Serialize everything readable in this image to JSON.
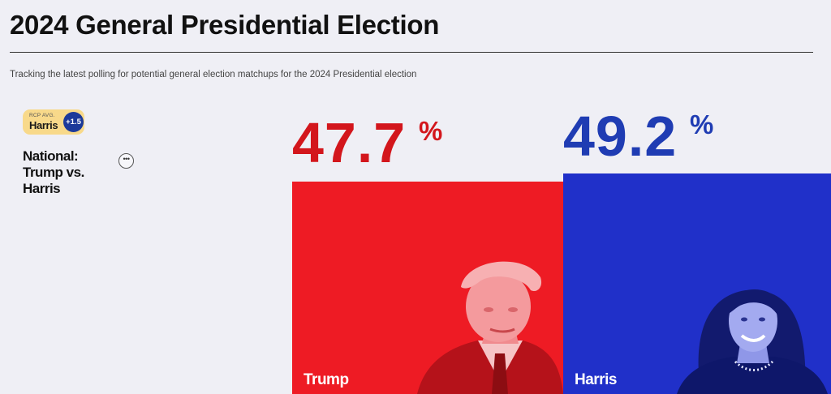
{
  "header": {
    "title": "2024 General Presidential Election",
    "subtitle": "Tracking the latest polling for potential general election matchups for the 2024 Presidential election"
  },
  "race": {
    "rcp_badge": {
      "label": "RCP AVG.",
      "leader": "Harris",
      "margin": "+1.5"
    },
    "name": "National: Trump vs. Harris",
    "more_icon": "ellipsis-icon"
  },
  "candidates": [
    {
      "name": "Trump",
      "percent": "47.7",
      "percent_sign": "%",
      "color": "#ee1b24",
      "text_color": "#d3161c",
      "photo_icon": "candidate-portrait-icon"
    },
    {
      "name": "Harris",
      "percent": "49.2",
      "percent_sign": "%",
      "color": "#2030c9",
      "text_color": "#1f3cb3",
      "photo_icon": "candidate-portrait-icon"
    }
  ]
}
